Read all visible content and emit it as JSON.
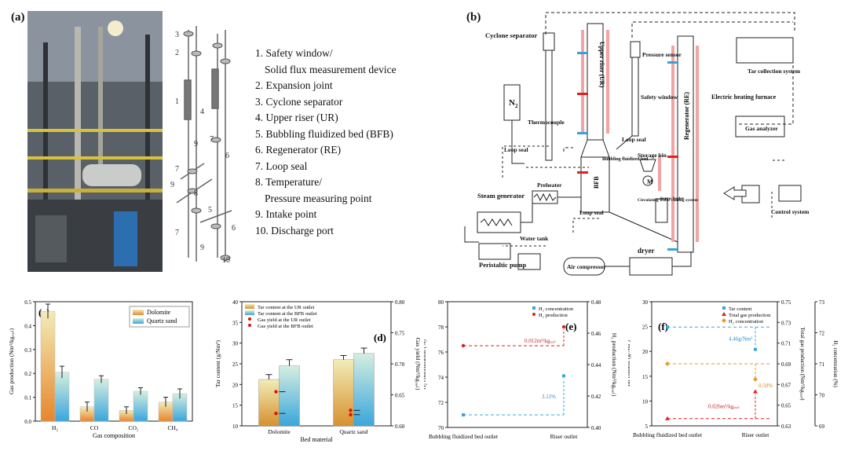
{
  "panel_a": {
    "tag": "(a)",
    "legend": [
      "1. Safety window/",
      "Solid flux measurement device",
      "2. Expansion joint",
      "3. Cyclone separator",
      "4. Upper riser (UR)",
      "5. Bubbling fluidized bed (BFB)",
      "6. Regenerator (RE)",
      "7. Loop seal",
      "8. Temperature/",
      "Pressure measuring point",
      "9. Intake point",
      "10. Discharge port"
    ],
    "callouts": [
      "1",
      "2",
      "3",
      "4",
      "5",
      "6",
      "7",
      "8",
      "9",
      "10"
    ]
  },
  "panel_b": {
    "tag": "(b)",
    "labels": {
      "cyclone": "Cyclone separator",
      "pressure_sensor": "Pressure sensor",
      "tar_collection": "Tar collection system",
      "n2": "N",
      "n2_sub": "2",
      "thermocouple": "Thermocouple",
      "upper_riser": "Upper riser (UR)",
      "safety_window": "Safety window",
      "electric_furnace": "Electric heating furnace",
      "loop_seal": "Loop seal",
      "bubbling_bed": "Bubbling fluidized bed",
      "storage_bin": "Storage bin",
      "regenerator": "Regenerator (RE)",
      "gas_analyzer": "Gas analyzer",
      "bfb": "BFB",
      "motor": "M",
      "circulating_water": "Circulating water cooling system",
      "screw_feeder": "Screw feeder",
      "steam_generator": "Steam generator",
      "preheater": "Preheater",
      "control_system": "Control system",
      "water_tank": "Water tank",
      "peristaltic_pump": "Peristaltic pump",
      "air_compressor": "Air compressor",
      "dryer": "dryer"
    }
  },
  "chart_data": [
    {
      "panel": "(c)",
      "type": "bar",
      "categories": [
        "H₂",
        "CO",
        "CO₂",
        "CH₄"
      ],
      "series": [
        {
          "name": "Dolomite",
          "values": [
            0.46,
            0.06,
            0.045,
            0.08
          ],
          "errors": [
            0.03,
            0.02,
            0.015,
            0.02
          ]
        },
        {
          "name": "Quartz sand",
          "values": [
            0.205,
            0.175,
            0.125,
            0.115
          ],
          "errors": [
            0.025,
            0.015,
            0.015,
            0.02
          ]
        }
      ],
      "xlabel": "Gas composition",
      "ylabel": "Gas production (Nm³/kgₑᵤₑₗ)",
      "ylim": [
        0.0,
        0.5
      ],
      "yticks": [
        "0.0",
        "0.1",
        "0.2",
        "0.3",
        "0.4",
        "0.5"
      ],
      "colors": {
        "Dolomite": "#e7882e",
        "Quartz sand": "#4fb3d9"
      },
      "legend": "top-right"
    },
    {
      "panel": "(d)",
      "type": "bar",
      "categories": [
        "Dolomite",
        "Quartz sand"
      ],
      "series": [
        {
          "name": "Tar content at the UR outlet",
          "values": [
            21.2,
            26.0
          ],
          "errors": [
            1.2,
            1.0
          ]
        },
        {
          "name": "Tar content at the BFB outlet",
          "values": [
            24.5,
            27.5
          ],
          "errors": [
            1.5,
            1.3
          ]
        },
        {
          "name": "Gas yield at the UR outlet",
          "axis": "right",
          "values": [
            0.655,
            0.625
          ]
        },
        {
          "name": "Gas yield at the BFB outlet",
          "axis": "right",
          "values": [
            0.62,
            0.618
          ]
        }
      ],
      "xlabel": "Bed material",
      "ylabel": "Tar content (g/Nm³)",
      "y2label": "Gas yield (Nm³/kgₑᵤₑₗ)",
      "ylim": [
        10,
        40
      ],
      "y2lim": [
        0.6,
        0.8
      ],
      "yticks": [
        "10",
        "15",
        "20",
        "25",
        "30",
        "35",
        "40"
      ],
      "y2ticks": [
        "0.60",
        "0.65",
        "0.70",
        "0.75",
        "0.80"
      ]
    },
    {
      "panel": "(e)",
      "type": "scatter",
      "categories": [
        "Bubbling fluidized bed outlet",
        "Riser outlet"
      ],
      "series": [
        {
          "name": "H₂ concentration",
          "values": [
            71.0,
            74.1
          ]
        },
        {
          "name": "H₂ production",
          "axis": "right",
          "values": [
            0.452,
            0.464
          ]
        }
      ],
      "annotations": [
        "0.012m³/kgₑᵤₑₗ",
        "3.11%"
      ],
      "ylabel": "H₂ concentration (%)",
      "y2label": "H₂ production (Nm³/kgₑᵤₑₗ)",
      "ylim": [
        70,
        80
      ],
      "y2lim": [
        0.4,
        0.48
      ],
      "yticks": [
        "70",
        "72",
        "74",
        "76",
        "78",
        "80"
      ],
      "y2ticks": [
        "0.40",
        "0.42",
        "0.44",
        "0.46",
        "0.48"
      ]
    },
    {
      "panel": "(f)",
      "type": "scatter",
      "categories": [
        "Bubbling fluidized bed outlet",
        "Riser outlet"
      ],
      "series": [
        {
          "name": "Tar content",
          "values": [
            24.9,
            20.4
          ]
        },
        {
          "name": "Total gas production",
          "axis": "right",
          "values": [
            0.637,
            0.663
          ]
        },
        {
          "name": "H₂ concentration",
          "axis": "right2",
          "values": [
            71.0,
            70.5
          ]
        }
      ],
      "annotations": [
        "4.46g/Nm³",
        "0.50%",
        "0.026m³/kgₑᵤₑₗ"
      ],
      "ylabel": "Tar content (g/Nm³)",
      "y2label": "Total gas production (Nm³/kgₑᵤₑₗ)",
      "y3label": "H₂ concentration (%)",
      "ylim": [
        5,
        30
      ],
      "y2lim": [
        0.63,
        0.75
      ],
      "y3lim": [
        69,
        73
      ],
      "yticks": [
        "5",
        "10",
        "15",
        "20",
        "25",
        "30"
      ],
      "y2ticks": [
        "0.63",
        "0.65",
        "0.67",
        "0.69",
        "0.71",
        "0.73",
        "0.75"
      ],
      "y3ticks": [
        "69",
        "70",
        "71",
        "72",
        "73"
      ]
    }
  ]
}
